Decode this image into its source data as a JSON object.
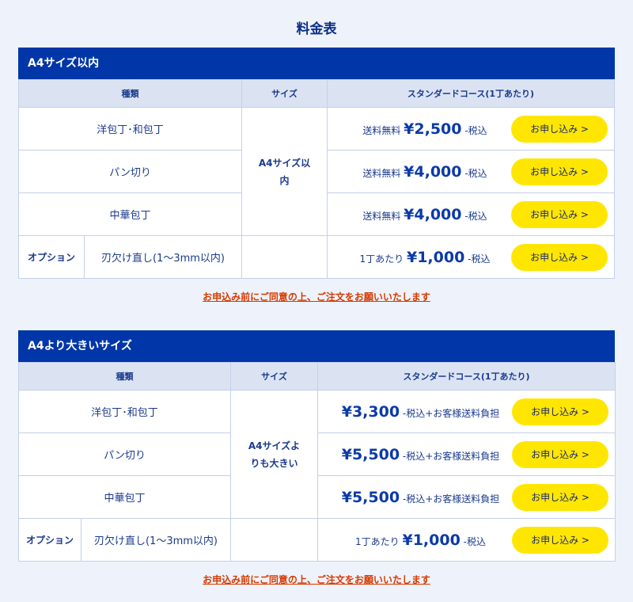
{
  "title": "料金表",
  "note": "お申込み前にご同意の上、ご注文をお願いいたします",
  "sections": [
    {
      "heading": "A4サイズ以内",
      "headers": [
        "種類",
        "サイズ",
        "スタンダードコース(1丁あたり)"
      ],
      "size": "A4サイズ以内",
      "rows": [
        {
          "kind": "洋包丁･和包丁",
          "prefix": "送料無料",
          "price": "¥2,500",
          "suffix": "-税込",
          "button": "お申し込み >"
        },
        {
          "kind": "パン切り",
          "prefix": "送料無料",
          "price": "¥4,000",
          "suffix": "-税込",
          "button": "お申し込み >"
        },
        {
          "kind": "中華包丁",
          "prefix": "送料無料",
          "price": "¥4,000",
          "suffix": "-税込",
          "button": "お申し込み >"
        }
      ],
      "option": {
        "label": "オプション",
        "kind": "刃欠け直し(1〜3mm以内)",
        "prefix": "1丁あたり",
        "price": "¥1,000",
        "suffix": "-税込",
        "button": "お申し込み >"
      }
    },
    {
      "heading": "A4より大きいサイズ",
      "headers": [
        "種類",
        "サイズ",
        "スタンダードコース(1丁あたり)"
      ],
      "size": "A4サイズよりも大きい",
      "rows": [
        {
          "kind": "洋包丁･和包丁",
          "prefix": "",
          "price": "¥3,300",
          "suffix": "-税込+お客様送料負担",
          "button": "お申し込み >"
        },
        {
          "kind": "パン切り",
          "prefix": "",
          "price": "¥5,500",
          "suffix": "-税込+お客様送料負担",
          "button": "お申し込み >"
        },
        {
          "kind": "中華包丁",
          "prefix": "",
          "price": "¥5,500",
          "suffix": "-税込+お客様送料負担",
          "button": "お申し込み >"
        }
      ],
      "option": {
        "label": "オプション",
        "kind": "刃欠け直し(1〜3mm以内)",
        "prefix": "1丁あたり",
        "price": "¥1,000",
        "suffix": "-税込",
        "button": "お申し込み >"
      }
    }
  ]
}
